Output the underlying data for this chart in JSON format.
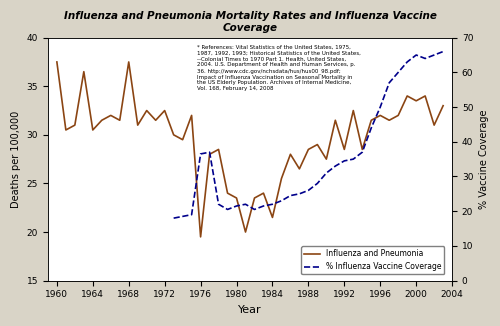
{
  "title": "Influenza and Pneumonia Mortality Rates and Influenza Vaccine\nCoverage",
  "xlabel": "Year",
  "ylabel_left": "Deaths per 100,000",
  "ylabel_right": "% Vaccine Coverage",
  "annotation": "* References: Vital Statistics of the United States, 1975,\n1987, 1992, 1993; Historical Statistics of the United States,\n--Colonial Times to 1970 Part 1. Health, United States,\n2004. U.S. Department of Health and Human Services, p.\n36. http://www.cdc.gov/nchsdata/hus/hus00_98.pdf;\nImpact of Influenza Vaccination on Seasonal Mortality in\nthe US Elderly Population. Archives of Internal Medicine,\nVol. 168, February 14, 2008",
  "ylim_left": [
    15.0,
    40.0
  ],
  "ylim_right": [
    0.0,
    70.0
  ],
  "yticks_left": [
    15.0,
    20.0,
    25.0,
    30.0,
    35.0,
    40.0
  ],
  "yticks_right": [
    0.0,
    10.0,
    20.0,
    30.0,
    40.0,
    50.0,
    60.0,
    70.0
  ],
  "mortality_years": [
    1960,
    1961,
    1962,
    1963,
    1964,
    1965,
    1966,
    1967,
    1968,
    1969,
    1970,
    1971,
    1972,
    1973,
    1974,
    1975,
    1976,
    1977,
    1978,
    1979,
    1980,
    1981,
    1982,
    1983,
    1984,
    1985,
    1986,
    1987,
    1988,
    1989,
    1990,
    1991,
    1992,
    1993,
    1994,
    1995,
    1996,
    1997,
    1998,
    1999,
    2000,
    2001,
    2002,
    2003
  ],
  "mortality_values": [
    37.5,
    30.5,
    31.0,
    36.5,
    30.5,
    31.5,
    32.0,
    31.5,
    37.5,
    31.0,
    32.5,
    31.5,
    32.5,
    30.0,
    29.5,
    32.0,
    19.5,
    28.0,
    28.5,
    24.0,
    23.5,
    20.0,
    23.5,
    24.0,
    21.5,
    25.5,
    28.0,
    26.5,
    28.5,
    29.0,
    27.5,
    31.5,
    28.5,
    32.5,
    28.5,
    31.5,
    32.0,
    31.5,
    32.0,
    34.0,
    33.5,
    34.0,
    31.0,
    33.0
  ],
  "vaccine_years": [
    1973,
    1974,
    1975,
    1976,
    1977,
    1978,
    1979,
    1980,
    1981,
    1982,
    1983,
    1984,
    1985,
    1986,
    1987,
    1988,
    1989,
    1990,
    1991,
    1992,
    1993,
    1994,
    1995,
    1996,
    1997,
    1998,
    1999,
    2000,
    2001,
    2002,
    2003
  ],
  "vaccine_values": [
    18.0,
    18.5,
    19.0,
    36.5,
    37.0,
    22.0,
    20.5,
    21.5,
    22.0,
    20.5,
    21.5,
    22.0,
    23.0,
    24.5,
    25.0,
    26.0,
    28.0,
    31.0,
    33.0,
    34.5,
    35.0,
    37.0,
    44.0,
    50.0,
    57.0,
    60.0,
    63.0,
    65.0,
    64.0,
    65.0,
    66.0
  ],
  "mortality_color": "#8B4513",
  "vaccine_color": "#00008B",
  "plot_bg_color": "#ffffff",
  "legend_entries": [
    "Influenza and Pneumonia",
    "% Influenza Vaccine Coverage"
  ],
  "background_color": "#d9d4c7"
}
